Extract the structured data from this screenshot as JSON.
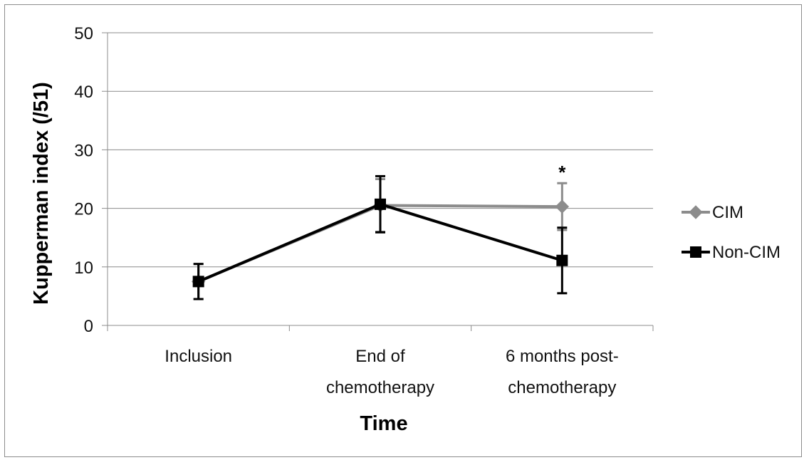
{
  "chart_data": {
    "type": "line",
    "categories": [
      "Inclusion",
      "End of chemotherapy",
      "6 months post-chemotherapy"
    ],
    "category_lines": [
      [
        "Inclusion"
      ],
      [
        "End of",
        "chemotherapy"
      ],
      [
        "6 months post-",
        "chemotherapy"
      ]
    ],
    "series": [
      {
        "name": "CIM",
        "values": [
          7.5,
          20.5,
          20.3
        ],
        "error": [
          3.0,
          4.5,
          4.0
        ],
        "color": "#8c8c8c",
        "marker": "diamond"
      },
      {
        "name": "Non-CIM",
        "values": [
          7.5,
          20.7,
          11.1
        ],
        "error": [
          3.0,
          4.8,
          5.6
        ],
        "color": "#000000",
        "marker": "square"
      }
    ],
    "xlabel": "Time",
    "ylabel": "Kupperman index (/51)",
    "ylim": [
      0,
      50
    ],
    "yticks": [
      0,
      10,
      20,
      30,
      40,
      50
    ],
    "grid": true,
    "legend_position": "right",
    "annotations": [
      {
        "text": "*",
        "category_index": 2,
        "y": 26.5
      }
    ]
  }
}
